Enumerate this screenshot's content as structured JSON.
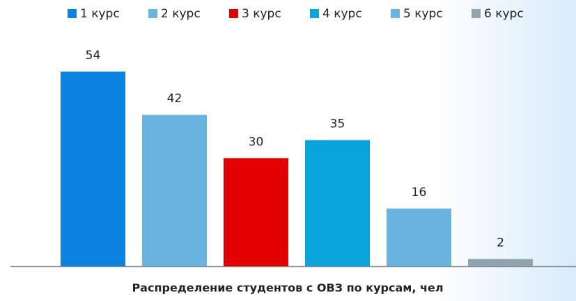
{
  "chart_data": {
    "type": "bar",
    "title": "Распределение студентов с ОВЗ по курсам, чел",
    "series": [
      {
        "name": "1 курс",
        "color": "#0a84e0",
        "values": [
          54
        ]
      },
      {
        "name": "2 курс",
        "color": "#6ab4e2",
        "values": [
          42
        ]
      },
      {
        "name": "3 курс",
        "color": "#e00000",
        "values": [
          30
        ]
      },
      {
        "name": "4 курс",
        "color": "#0aa4dc",
        "values": [
          35
        ]
      },
      {
        "name": "5 курс",
        "color": "#6ab4e2",
        "values": [
          16
        ]
      },
      {
        "name": "6 курс",
        "color": "#8fa4ae",
        "values": [
          2
        ]
      }
    ],
    "legend": "top"
  }
}
